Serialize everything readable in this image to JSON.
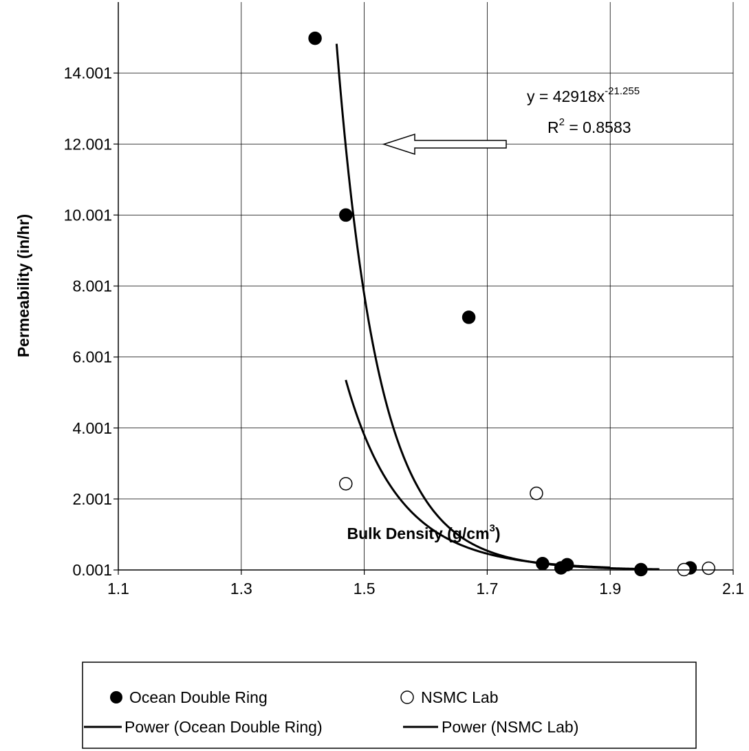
{
  "chart_data": {
    "type": "scatter",
    "title": "",
    "xlabel": {
      "main": "Bulk Density (g/cm",
      "sup": "3",
      "end": ")"
    },
    "ylabel": "Permeability (in/hr)",
    "xlim": [
      1.1,
      2.1
    ],
    "ylim": [
      0.001,
      16.001
    ],
    "x_ticks": [
      "1.1",
      "1.3",
      "1.5",
      "1.7",
      "1.9",
      "2.1"
    ],
    "y_ticks": [
      "0.001",
      "2.001",
      "4.001",
      "6.001",
      "8.001",
      "10.001",
      "12.001",
      "14.001"
    ],
    "grid": true,
    "legend_position": "bottom",
    "series": [
      {
        "name": "Ocean Double Ring",
        "marker": "filled-circle",
        "color": "#000000",
        "points": [
          [
            1.42,
            14.98
          ],
          [
            1.47,
            10.0
          ],
          [
            1.67,
            7.12
          ],
          [
            1.79,
            0.18
          ],
          [
            1.82,
            0.06
          ],
          [
            1.83,
            0.15
          ],
          [
            1.95,
            0.01
          ],
          [
            2.03,
            0.06
          ]
        ]
      },
      {
        "name": "NSMC Lab",
        "marker": "open-circle",
        "color": "#000000",
        "points": [
          [
            1.47,
            2.43
          ],
          [
            1.78,
            2.16
          ],
          [
            2.02,
            0.01
          ],
          [
            2.06,
            0.05
          ]
        ]
      }
    ],
    "trendlines": [
      {
        "name": "Power (Ocean Double Ring)",
        "type": "power",
        "a": 42918,
        "b": -21.255,
        "x_range": [
          1.455,
          1.98
        ]
      },
      {
        "name": "Power (NSMC Lab)",
        "type": "power",
        "a": 3600,
        "b": -16.9,
        "x_range": [
          1.47,
          1.9
        ]
      }
    ],
    "annotation": {
      "equation_main": "y = 42918x",
      "equation_exp": "-21.255",
      "r2_main": "R",
      "r2_sup": "2",
      "r2_value": " = 0.8583"
    }
  }
}
